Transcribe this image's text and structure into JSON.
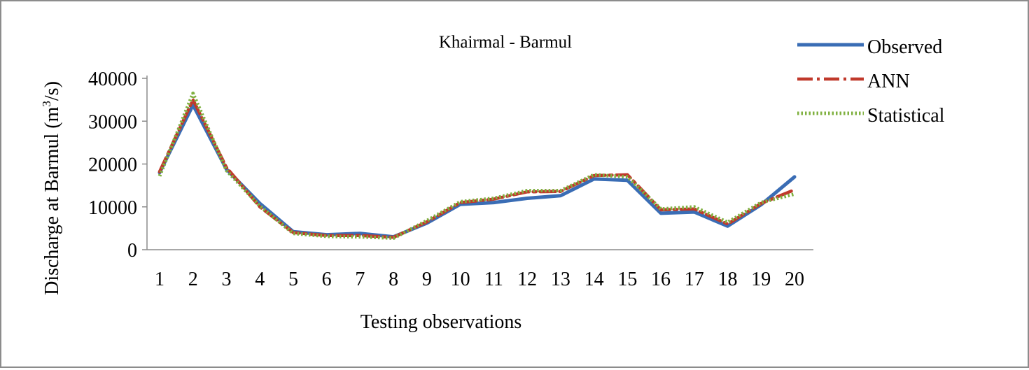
{
  "chart_data": {
    "type": "line",
    "title": "Khairmal - Barmul",
    "xlabel": "Testing observations",
    "ylabel": "Discharge at Barmul (m³/s)",
    "ylabel_parts": {
      "before": "Discharge at Barmul (m",
      "sup": "3",
      "after": "/s)"
    },
    "ylim": [
      0,
      40000
    ],
    "yticks": [
      0,
      10000,
      20000,
      30000,
      40000
    ],
    "ytick_labels": [
      "0",
      "10000",
      "20000",
      "30000",
      "40000"
    ],
    "categories": [
      "1",
      "2",
      "3",
      "4",
      "5",
      "6",
      "7",
      "8",
      "9",
      "10",
      "11",
      "12",
      "13",
      "14",
      "15",
      "16",
      "17",
      "18",
      "19",
      "20"
    ],
    "grid": false,
    "legend_position": "top-right",
    "series": [
      {
        "name": "Observed",
        "color": "#3a6db5",
        "style": "solid",
        "values": [
          18000,
          33800,
          18800,
          10800,
          4200,
          3500,
          3800,
          3000,
          6200,
          10600,
          11000,
          12000,
          12600,
          16500,
          16200,
          8500,
          8800,
          5500,
          10500,
          17000
        ]
      },
      {
        "name": "ANN",
        "color": "#c0392b",
        "style": "dashdot",
        "values": [
          18200,
          35000,
          19200,
          10000,
          4000,
          3300,
          3300,
          2900,
          6500,
          11000,
          11800,
          13500,
          13600,
          17300,
          17500,
          9300,
          9500,
          6000,
          10800,
          14000
        ]
      },
      {
        "name": "Statistical",
        "color": "#7fb03f",
        "style": "dotted",
        "values": [
          17200,
          36500,
          18500,
          10200,
          3800,
          3100,
          3000,
          2700,
          6800,
          11200,
          12000,
          13800,
          13800,
          17500,
          17000,
          9500,
          10000,
          6400,
          11000,
          13000
        ]
      }
    ]
  }
}
